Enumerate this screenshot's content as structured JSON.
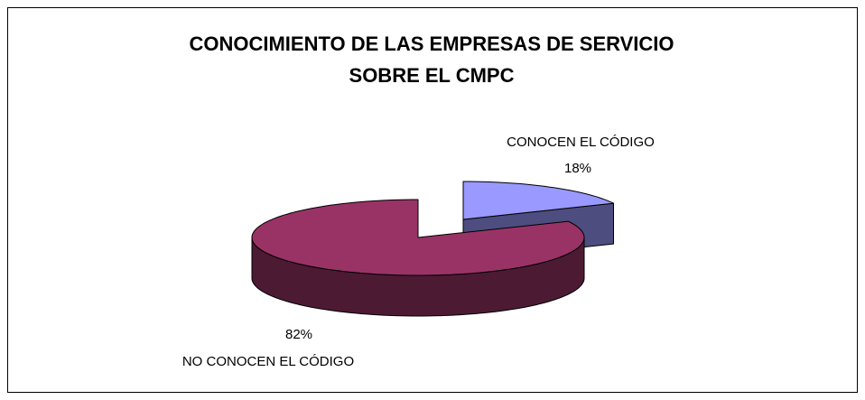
{
  "chart_data": {
    "type": "pie3d",
    "title": [
      "CONOCIMIENTO DE LAS EMPRESAS DE SERVICIO",
      "SOBRE EL CMPC"
    ],
    "categories": [
      "CONOCEN EL CÓDIGO",
      "NO CONOCEN EL CÓDIGO"
    ],
    "values": [
      18,
      82
    ],
    "value_labels": [
      "18%",
      "82%"
    ],
    "colors": [
      "#9999ff",
      "#993366"
    ],
    "explode": [
      true,
      false
    ]
  }
}
